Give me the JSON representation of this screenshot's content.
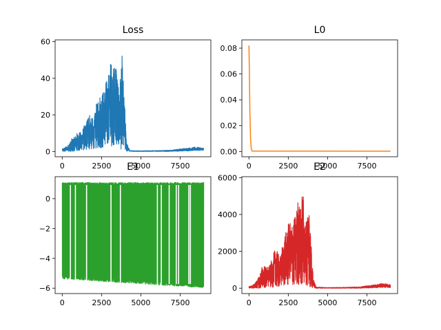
{
  "chart_data": [
    {
      "id": "loss",
      "type": "line",
      "title": "Loss",
      "color": "#1f77b4",
      "xlim": [
        -450,
        9450
      ],
      "ylim": [
        -2.9,
        61.0
      ],
      "xticks": [
        0,
        2500,
        5000,
        7500
      ],
      "xtick_labels": [
        "0",
        "2500",
        "5000",
        "7500"
      ],
      "yticks": [
        0,
        20,
        40,
        60
      ],
      "ytick_labels": [
        "0",
        "20",
        "40",
        "60"
      ],
      "envelope": {
        "x": [
          0,
          300,
          600,
          900,
          1200,
          1500,
          1700,
          2000,
          2300,
          2600,
          2900,
          3100,
          3300,
          3400,
          3600,
          3800,
          3950,
          4100,
          4300,
          5000,
          6000,
          7000,
          7500,
          8000,
          8500,
          9000
        ],
        "high": [
          1.5,
          3,
          7,
          10,
          12,
          16,
          24,
          17,
          33,
          36,
          42,
          52,
          50,
          58,
          35,
          54,
          30,
          5,
          0.5,
          0.4,
          0.5,
          0.8,
          1.5,
          2.0,
          2.5,
          2.0
        ],
        "low": [
          0,
          0,
          0,
          0.2,
          0.5,
          1,
          1,
          1.5,
          2,
          2,
          3,
          3,
          3,
          3,
          2,
          1,
          0.5,
          0.1,
          0,
          0,
          0,
          0,
          0.2,
          0.3,
          0.5,
          0.5
        ]
      }
    },
    {
      "id": "l0",
      "type": "line",
      "title": "L0",
      "color": "#ff7f0e",
      "xlim": [
        -450,
        9450
      ],
      "ylim": [
        -0.0041,
        0.0864
      ],
      "xticks": [
        0,
        2500,
        5000,
        7500
      ],
      "xtick_labels": [
        "0",
        "2500",
        "5000",
        "7500"
      ],
      "yticks": [
        0.0,
        0.02,
        0.04,
        0.06,
        0.08
      ],
      "ytick_labels": [
        "0.00",
        "0.02",
        "0.04",
        "0.06",
        "0.08"
      ],
      "x": [
        0,
        30,
        60,
        80,
        100,
        150,
        200,
        9000
      ],
      "y": [
        0.082,
        0.06,
        0.03,
        0.022,
        0.01,
        0.002,
        0.0003,
        0.0002
      ]
    },
    {
      "id": "e1",
      "type": "line",
      "title": "E1",
      "color": "#2ca02c",
      "xlim": [
        -450,
        9450
      ],
      "ylim": [
        -6.36,
        1.47
      ],
      "xticks": [
        0,
        2500,
        5000,
        7500
      ],
      "xtick_labels": [
        "0",
        "2500",
        "5000",
        "7500"
      ],
      "yticks": [
        -6,
        -4,
        -2,
        0
      ],
      "ytick_labels": [
        "−6",
        "−4",
        "−2",
        "0"
      ],
      "band": {
        "x_start": 0,
        "x_end": 9000,
        "high": 1.1,
        "low_start": -5.4,
        "low_end": -6.0
      },
      "gaps_x": [
        520,
        840,
        1550,
        3100,
        3700,
        6050,
        6300,
        6800,
        7250,
        7400,
        8050,
        8150
      ]
    },
    {
      "id": "e2",
      "type": "line",
      "title": "E2",
      "color": "#d62728",
      "xlim": [
        -450,
        9450
      ],
      "ylim": [
        -290,
        6050
      ],
      "xticks": [
        0,
        2500,
        5000,
        7500
      ],
      "xtick_labels": [
        "0",
        "2500",
        "5000",
        "7500"
      ],
      "yticks": [
        0,
        2000,
        4000,
        6000
      ],
      "ytick_labels": [
        "0",
        "2000",
        "4000",
        "6000"
      ],
      "envelope": {
        "x": [
          0,
          300,
          600,
          900,
          1200,
          1500,
          1700,
          2000,
          2300,
          2600,
          2900,
          3100,
          3300,
          3400,
          3600,
          3800,
          3950,
          4100,
          4300,
          5000,
          6000,
          7000,
          7500,
          8000,
          8500,
          9000
        ],
        "high": [
          100,
          200,
          600,
          1400,
          1200,
          1600,
          2400,
          1800,
          3300,
          3600,
          4200,
          5000,
          4800,
          5800,
          3500,
          5400,
          2800,
          500,
          60,
          40,
          50,
          80,
          150,
          200,
          280,
          200
        ],
        "low": [
          0,
          0,
          0,
          10,
          30,
          60,
          80,
          100,
          150,
          160,
          200,
          200,
          200,
          200,
          150,
          100,
          50,
          10,
          0,
          0,
          0,
          0,
          10,
          20,
          40,
          30
        ]
      }
    }
  ]
}
